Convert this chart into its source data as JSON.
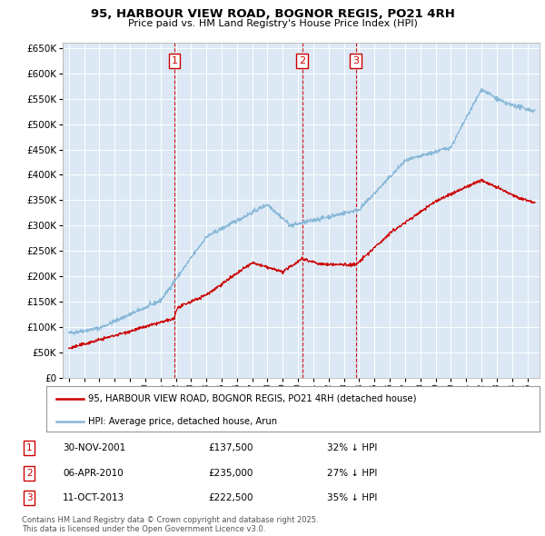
{
  "title": "95, HARBOUR VIEW ROAD, BOGNOR REGIS, PO21 4RH",
  "subtitle": "Price paid vs. HM Land Registry's House Price Index (HPI)",
  "background_color": "#ffffff",
  "plot_bg_color": "#dce9f5",
  "grid_color": "#ffffff",
  "red_line_color": "#cc0000",
  "blue_line_color": "#88b8d8",
  "sale_line_color": "#cc0000",
  "sales": [
    {
      "num": 1,
      "date_str": "30-NOV-2001",
      "year": 2001.92,
      "price": 137500,
      "pct": "32%",
      "dir": "↓"
    },
    {
      "num": 2,
      "date_str": "06-APR-2010",
      "year": 2010.27,
      "price": 235000,
      "pct": "27%",
      "dir": "↓"
    },
    {
      "num": 3,
      "date_str": "11-OCT-2013",
      "year": 2013.78,
      "price": 222500,
      "pct": "35%",
      "dir": "↓"
    }
  ],
  "legend_label_red": "95, HARBOUR VIEW ROAD, BOGNOR REGIS, PO21 4RH (detached house)",
  "legend_label_blue": "HPI: Average price, detached house, Arun",
  "footer": "Contains HM Land Registry data © Crown copyright and database right 2025.\nThis data is licensed under the Open Government Licence v3.0.",
  "ylim": [
    0,
    660000
  ],
  "xlim_start": 1994.6,
  "xlim_end": 2025.8,
  "yticks": [
    0,
    50000,
    100000,
    150000,
    200000,
    250000,
    300000,
    350000,
    400000,
    450000,
    500000,
    550000,
    600000,
    650000
  ],
  "xtick_start": 1995,
  "xtick_end": 2026
}
